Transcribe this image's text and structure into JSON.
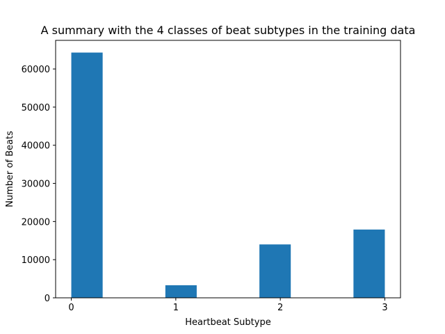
{
  "chart_data": {
    "type": "bar",
    "title": "A summary with the 4 classes of beat subtypes in the training data",
    "xlabel": "Heartbeat Subtype",
    "ylabel": "Number of Beats",
    "xlim": [
      -0.15,
      3.15
    ],
    "ylim": [
      0,
      67500
    ],
    "x_ticks": [
      0,
      1,
      2,
      3
    ],
    "x_tick_labels": [
      "0",
      "1",
      "2",
      "3"
    ],
    "y_ticks": [
      0,
      10000,
      20000,
      30000,
      40000,
      50000,
      60000
    ],
    "y_tick_labels": [
      "0",
      "10000",
      "20000",
      "30000",
      "40000",
      "50000",
      "60000"
    ],
    "bar_width": 0.3,
    "categories": [
      "0",
      "1",
      "2",
      "3"
    ],
    "x": [
      0.15,
      1.05,
      1.95,
      2.85
    ],
    "values": [
      64300,
      3300,
      14000,
      17900
    ],
    "bar_color": "#1f77b4",
    "grid": false,
    "legend": "none"
  }
}
